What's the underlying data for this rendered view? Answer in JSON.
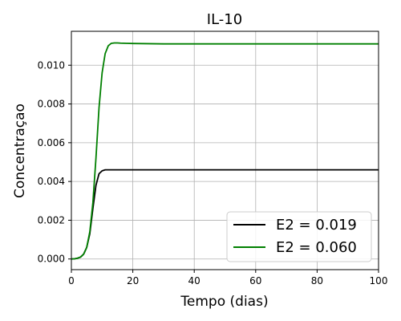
{
  "chart_data": {
    "type": "line",
    "title": "IL-10",
    "xlabel": "Tempo (dias)",
    "ylabel": "Concentraçao",
    "xlim": [
      0,
      100
    ],
    "ylim": [
      -0.00055,
      0.01175
    ],
    "xticks": [
      0,
      20,
      40,
      60,
      80,
      100
    ],
    "xtick_labels": [
      "0",
      "20",
      "40",
      "60",
      "80",
      "100"
    ],
    "yticks": [
      0.0,
      0.002,
      0.004,
      0.006,
      0.008,
      0.01
    ],
    "ytick_labels": [
      "0.000",
      "0.002",
      "0.004",
      "0.006",
      "0.008",
      "0.010"
    ],
    "grid": true,
    "legend_position": "lower-right",
    "series": [
      {
        "name": "E2 = 0.019",
        "color": "#000000",
        "x": [
          0,
          1,
          2,
          3,
          4,
          5,
          6,
          7,
          8,
          9,
          10,
          11,
          12,
          13,
          14,
          15,
          20,
          30,
          40,
          60,
          80,
          100
        ],
        "y": [
          0.0,
          1e-05,
          4e-05,
          0.0001,
          0.00025,
          0.0006,
          0.0013,
          0.0026,
          0.0038,
          0.0044,
          0.00455,
          0.0046,
          0.0046,
          0.0046,
          0.0046,
          0.0046,
          0.0046,
          0.0046,
          0.0046,
          0.0046,
          0.0046,
          0.0046
        ]
      },
      {
        "name": "E2 = 0.060",
        "color": "#008000",
        "x": [
          0,
          1,
          2,
          3,
          4,
          5,
          6,
          7,
          8,
          9,
          10,
          11,
          12,
          13,
          14,
          15,
          16,
          18,
          20,
          25,
          30,
          40,
          60,
          80,
          100
        ],
        "y": [
          0.0,
          1e-05,
          4e-05,
          0.0001,
          0.00025,
          0.0006,
          0.0014,
          0.0029,
          0.0052,
          0.0078,
          0.0096,
          0.0106,
          0.011,
          0.01113,
          0.01115,
          0.01115,
          0.01114,
          0.01113,
          0.01112,
          0.01111,
          0.0111,
          0.0111,
          0.0111,
          0.0111,
          0.0111
        ]
      }
    ]
  }
}
